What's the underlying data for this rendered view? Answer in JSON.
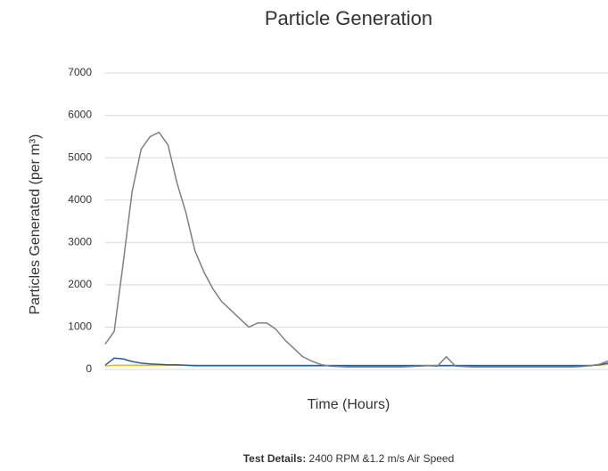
{
  "chart_data": {
    "type": "line",
    "title": "Particle Generation",
    "y_axis_label": "Particles Generated (per m³)",
    "x_axis_label": "Time (Hours)",
    "footer_label": "Test Details:",
    "footer_text": "2400 RPM &1.2 m/s Air Speed",
    "x": [
      0,
      1,
      2,
      3,
      4,
      5,
      6,
      7,
      8,
      9,
      10,
      11,
      12,
      13,
      14,
      15,
      16,
      17,
      18,
      19,
      20,
      21,
      22,
      23,
      24,
      25,
      26,
      27,
      28,
      29,
      30,
      31,
      32,
      33,
      34,
      35,
      36,
      37,
      38,
      39,
      40,
      41,
      42,
      43,
      44,
      45,
      46,
      47,
      48,
      49,
      50,
      51,
      52,
      53,
      54,
      55,
      56
    ],
    "xlim": [
      0,
      56
    ],
    "ylim": [
      0,
      7000
    ],
    "yticks": [
      0,
      1000,
      2000,
      3000,
      4000,
      5000,
      6000,
      7000
    ],
    "grid": true,
    "series": [
      {
        "color": "#f2b824",
        "values": [
          80,
          100,
          100,
          100,
          100,
          100,
          100,
          100,
          100,
          100,
          100,
          100,
          100,
          100,
          100,
          100,
          100,
          100,
          100,
          100,
          100,
          100,
          100,
          100,
          100,
          100,
          100,
          100,
          100,
          100,
          100,
          100,
          100,
          100,
          100,
          100,
          100,
          100,
          100,
          100,
          100,
          100,
          100,
          100,
          100,
          100,
          100,
          100,
          100,
          100,
          100,
          100,
          100,
          100,
          100,
          100,
          120
        ]
      },
      {
        "color": "#1f5fa0",
        "values": [
          100,
          270,
          250,
          190,
          150,
          130,
          120,
          110,
          110,
          100,
          90,
          90,
          90,
          90,
          90,
          90,
          90,
          90,
          90,
          90,
          90,
          90,
          90,
          90,
          90,
          90,
          90,
          90,
          90,
          90,
          90,
          90,
          90,
          90,
          90,
          90,
          90,
          90,
          90,
          90,
          90,
          90,
          90,
          90,
          90,
          90,
          90,
          90,
          90,
          90,
          90,
          90,
          90,
          90,
          90,
          110,
          150
        ]
      },
      {
        "color": "#808080",
        "values": [
          600,
          900,
          2500,
          4200,
          5200,
          5500,
          5600,
          5300,
          4400,
          3700,
          2800,
          2300,
          1900,
          1600,
          1400,
          1200,
          1000,
          1100,
          1100,
          950,
          700,
          500,
          300,
          200,
          120,
          80,
          70,
          60,
          60,
          60,
          60,
          60,
          60,
          60,
          70,
          80,
          90,
          80,
          300,
          80,
          70,
          60,
          60,
          60,
          60,
          60,
          60,
          60,
          60,
          60,
          60,
          60,
          60,
          70,
          90,
          120,
          200
        ]
      }
    ]
  }
}
